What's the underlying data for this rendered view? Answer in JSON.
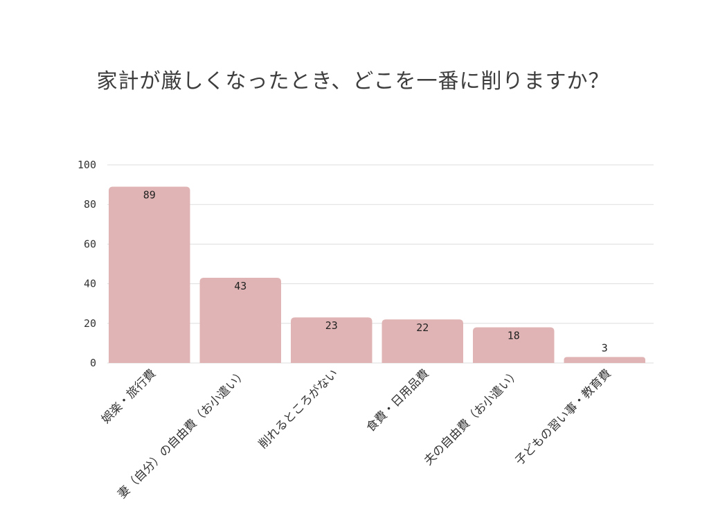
{
  "chart_data": {
    "type": "bar",
    "title": "家計が厳しくなったとき、どこを一番に削りますか？",
    "xlabel": "",
    "ylabel": "",
    "categories": [
      "娯楽・旅行費",
      "妻（自分）の自由費（お小遣い）",
      "削れるところがない",
      "食費・日用品費",
      "夫の自由費（お小遣い）",
      "子どもの習い事・教育費"
    ],
    "values": [
      89,
      43,
      23,
      22,
      18,
      3
    ],
    "ylim": [
      0,
      100
    ],
    "yticks": [
      0,
      20,
      40,
      60,
      80,
      100
    ],
    "grid": true,
    "legend": "none",
    "bar_color": "#e0b4b4"
  }
}
